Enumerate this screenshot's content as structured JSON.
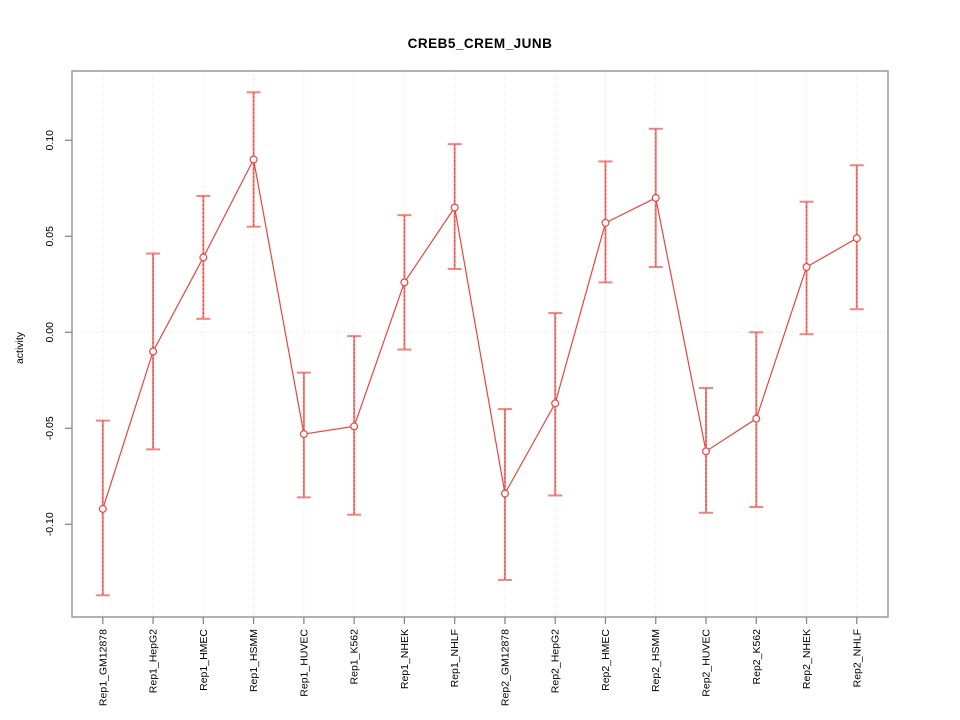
{
  "title": "CREB5_CREM_JUNB",
  "chart_data": {
    "type": "line",
    "title": "CREB5_CREM_JUNB",
    "xlabel": "",
    "ylabel": "activity",
    "legend_position": "none",
    "grid": "dotted vertical gridline per category, dotted horizontal line at y=0",
    "point_style": "open-circle with vertical error bars and caps",
    "categories": [
      "Rep1_GM12878",
      "Rep1_HepG2",
      "Rep1_HMEC",
      "Rep1_HSMM",
      "Rep1_HUVEC",
      "Rep1_K562",
      "Rep1_NHEK",
      "Rep1_NHLF",
      "Rep2_GM12878",
      "Rep2_HepG2",
      "Rep2_HMEC",
      "Rep2_HSMM",
      "Rep2_HUVEC",
      "Rep2_K562",
      "Rep2_NHEK",
      "Rep2_NHLF"
    ],
    "series": [
      {
        "name": "activity",
        "values": [
          -0.092,
          -0.01,
          0.039,
          0.09,
          -0.053,
          -0.049,
          0.026,
          0.065,
          -0.084,
          -0.037,
          0.057,
          0.07,
          -0.062,
          -0.045,
          0.034,
          0.049
        ],
        "error_low": [
          -0.137,
          -0.061,
          0.007,
          0.055,
          -0.086,
          -0.095,
          -0.009,
          0.033,
          -0.129,
          -0.085,
          0.026,
          0.034,
          -0.094,
          -0.091,
          -0.001,
          0.012
        ],
        "error_high": [
          -0.046,
          0.041,
          0.071,
          0.125,
          -0.021,
          -0.002,
          0.061,
          0.098,
          -0.04,
          0.01,
          0.089,
          0.106,
          -0.029,
          0.0,
          0.068,
          0.087
        ]
      }
    ],
    "ytick_values": [
      -0.1,
      -0.05,
      0.0,
      0.05,
      0.1
    ],
    "ytick_labels": [
      "-0.10",
      "-0.05",
      "0.00",
      "0.05",
      "0.10"
    ],
    "ylim": [
      -0.1483,
      0.1361
    ],
    "colors": {
      "line": "#e8453e",
      "point": "#e8453e",
      "error_bar": "#f2847f",
      "error_bar_dash": "#e8453e",
      "grid": "#e2e2e2",
      "axis_box": "#898989",
      "tick": "#898989",
      "text": "#000000",
      "background": "#ffffff"
    }
  }
}
